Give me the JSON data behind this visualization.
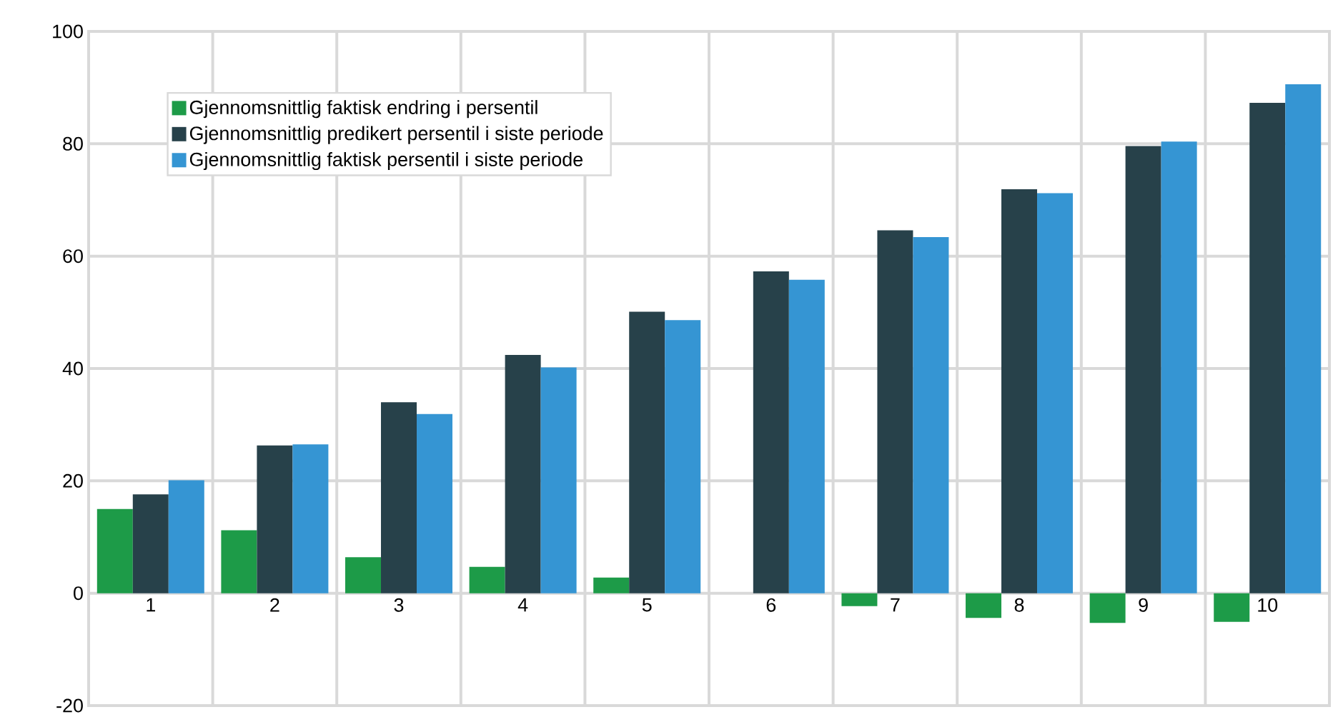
{
  "chart_data": {
    "type": "bar",
    "categories": [
      "1",
      "2",
      "3",
      "4",
      "5",
      "6",
      "7",
      "8",
      "9",
      "10"
    ],
    "series": [
      {
        "name": "Gjennomsnittlig faktisk endring i persentil",
        "color": "#1d9b48",
        "values": [
          15.0,
          11.2,
          6.4,
          4.7,
          2.8,
          0,
          -2.3,
          -4.4,
          -5.3,
          -5.1
        ]
      },
      {
        "name": "Gjennomsnittlig predikert persentil i siste periode",
        "color": "#27414a",
        "values": [
          17.6,
          26.3,
          34.0,
          42.4,
          50.1,
          57.3,
          64.6,
          71.9,
          79.6,
          87.3
        ]
      },
      {
        "name": "Gjennomsnittlig faktisk persentil i siste periode",
        "color": "#3595d3",
        "values": [
          20.1,
          26.5,
          31.9,
          40.2,
          48.6,
          55.8,
          63.4,
          71.2,
          80.4,
          90.6
        ]
      }
    ],
    "ylim": [
      -20,
      100
    ],
    "yticks": [
      -20,
      0,
      20,
      40,
      60,
      80,
      100
    ],
    "grid": true,
    "legend": "top left"
  }
}
